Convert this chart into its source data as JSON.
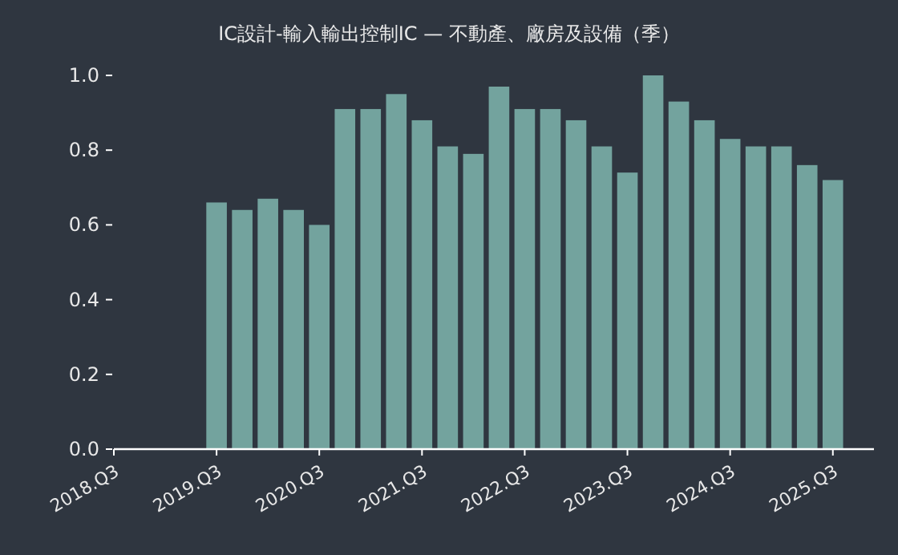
{
  "chart_data": {
    "type": "bar",
    "title": "IC設計-輸入輸出控制IC — 不動產、廠房及設備（季）",
    "categories": [
      "2018.Q3",
      null,
      null,
      null,
      "2019.Q3",
      null,
      null,
      null,
      "2020.Q3",
      null,
      null,
      null,
      "2021.Q3",
      null,
      null,
      null,
      "2022.Q3",
      null,
      null,
      null,
      "2023.Q3",
      null,
      null,
      null,
      "2024.Q3",
      null,
      null,
      null,
      "2025.Q3"
    ],
    "values": [
      null,
      null,
      null,
      null,
      0.66,
      0.64,
      0.67,
      0.64,
      0.6,
      0.91,
      0.91,
      0.95,
      0.88,
      0.81,
      0.79,
      0.97,
      0.91,
      0.91,
      0.88,
      0.81,
      0.74,
      1.0,
      0.93,
      0.88,
      0.83,
      0.81,
      0.81,
      0.76,
      0.72
    ],
    "color": "#73a39e",
    "ylim": [
      0,
      1
    ],
    "yticks": [
      {
        "value": 0,
        "label": "0.0"
      },
      {
        "value": 0.2,
        "label": "0.2"
      },
      {
        "value": 0.4,
        "label": "0.4"
      },
      {
        "value": 0.6,
        "label": "0.6"
      },
      {
        "value": 0.8,
        "label": "0.8"
      },
      {
        "value": 1,
        "label": "1.0"
      }
    ]
  }
}
